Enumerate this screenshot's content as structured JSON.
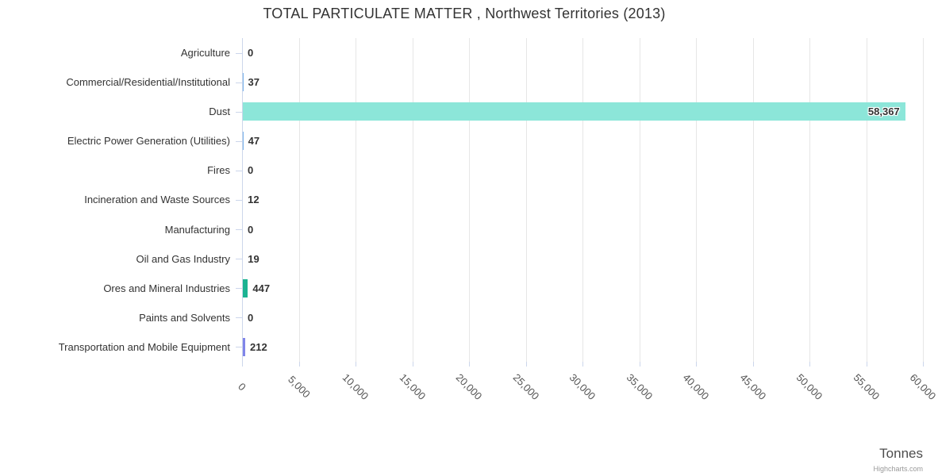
{
  "header": {
    "title": "TOTAL PARTICULATE MATTER , Northwest Territories (2013)"
  },
  "chart_data": {
    "type": "bar",
    "orientation": "horizontal",
    "title": "TOTAL PARTICULATE MATTER , Northwest Territories (2013)",
    "categories": [
      "Agriculture",
      "Commercial/Residential/Institutional",
      "Dust",
      "Electric Power Generation (Utilities)",
      "Fires",
      "Incineration and Waste Sources",
      "Manufacturing",
      "Oil and Gas Industry",
      "Ores and Mineral Industries",
      "Paints and Solvents",
      "Transportation and Mobile Equipment"
    ],
    "values": [
      0,
      37,
      58367,
      47,
      0,
      12,
      0,
      19,
      447,
      0,
      212
    ],
    "value_labels": [
      "0",
      "37",
      "58,367",
      "47",
      "0",
      "12",
      "0",
      "19",
      "447",
      "0",
      "212"
    ],
    "bar_colors": [
      "#7cb5ec",
      "#7cb5ec",
      "#8ce6d9",
      "#7cb5ec",
      "#7cb5ec",
      "#7cb5ec",
      "#7cb5ec",
      "#7cb5ec",
      "#1bb392",
      "#7cb5ec",
      "#8085e9"
    ],
    "xlabel": "Tonnes",
    "ylabel": "",
    "xlim": [
      0,
      60000
    ],
    "x_tick_step": 5000,
    "x_tick_labels": [
      "0",
      "5,000",
      "10,000",
      "15,000",
      "20,000",
      "25,000",
      "30,000",
      "35,000",
      "40,000",
      "45,000",
      "50,000",
      "55,000",
      "60,000"
    ],
    "grid": true,
    "legend_position": "none"
  },
  "credits": {
    "label": "Highcharts.com"
  },
  "colors": {
    "accent_bar_large": "#8ce6d9",
    "accent_bar_green": "#1bb392",
    "accent_bar_purple": "#8085e9",
    "grid": "#e6e6e6",
    "axis": "#ccd6eb",
    "text": "#333333"
  }
}
